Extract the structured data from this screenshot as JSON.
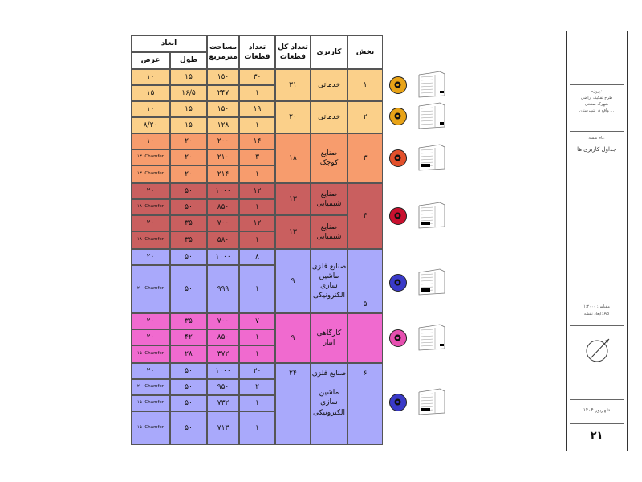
{
  "table": {
    "headers": {
      "section": "بخش",
      "usage": "کاربری",
      "total_parcels": "تعداد کل قطعات",
      "count": "تعداد قطعات",
      "area": "مساحت مترمربع",
      "dimensions": "ابعاد",
      "length": "طول",
      "width": "عرض"
    },
    "colors": {
      "section1": "#fbd08a",
      "section2": "#fbd08a",
      "section3": "#f79c6d",
      "section4": "#c95f5f",
      "section5": "#a9a9fb",
      "section5b": "#f06acf",
      "section6": "#a9a9fb"
    },
    "sections": {
      "s1": {
        "id": "١",
        "usage": "خدماتی",
        "total": "٣١",
        "rows": [
          {
            "count": "٣٠",
            "area": "١٥٠",
            "length": "١۵",
            "width": "١٠"
          },
          {
            "count": "١",
            "area": "٢۴٧",
            "length": "١۶/۵",
            "width": "١۵"
          }
        ]
      },
      "s2": {
        "id": "٢",
        "usage": "خدماتی",
        "total": "٢٠",
        "rows": [
          {
            "count": "١٩",
            "area": "١۵٠",
            "length": "١۵",
            "width": "١٠"
          },
          {
            "count": "١",
            "area": "١٢٨",
            "length": "١۵",
            "width": "٨/٢٠"
          }
        ]
      },
      "s3": {
        "id": "٣",
        "usage": "صنایع\nکوچک",
        "total": "١٨",
        "rows": [
          {
            "count": "١۴",
            "area": "٢٠٠",
            "length": "٢٠",
            "width": "١٠"
          },
          {
            "count": "٣",
            "area": "٢١٠",
            "length": "٢٠",
            "width": "١٣ :Chamfer"
          },
          {
            "count": "١",
            "area": "٢١۴",
            "length": "٢٠",
            "width": "١٣ :Chamfer"
          }
        ]
      },
      "s4": {
        "id": "۴",
        "usage_a": "صنایع\nشیمیایی",
        "total_a": "١٣",
        "usage_b": "صنایع\nشیمیایی",
        "total_b": "١٣",
        "rows": [
          {
            "count": "١٢",
            "area": "١٠٠٠",
            "length": "۵٠",
            "width": "٢٠"
          },
          {
            "count": "١",
            "area": "٨۵٠",
            "length": "۵٠",
            "width": "١٨ :Chamfer"
          },
          {
            "count": "١٢",
            "area": "٧٠٠",
            "length": "٣۵",
            "width": "٢٠"
          },
          {
            "count": "١",
            "area": "۵٨٠",
            "length": "٣۵",
            "width": "١٨ :Chamfer"
          }
        ]
      },
      "s5": {
        "id": "۵",
        "usage_a": "صنایع فلزی\nماشین\nسازی\nالکترونیکی",
        "total_a": "٩",
        "usage_b": "کارگاهی\nانبار",
        "total_b": "٩",
        "rows": [
          {
            "count": "٨",
            "area": "١٠٠٠",
            "length": "۵٠",
            "width": "٢٠"
          },
          {
            "count": "١",
            "area": "٩٩٩",
            "length": "۵٠",
            "width": "٢٠ :Chamfer"
          },
          {
            "count": "٧",
            "area": "٧٠٠",
            "length": "٣۵",
            "width": "٢٠"
          },
          {
            "count": "١",
            "area": "٨۵٠",
            "length": "۴٢",
            "width": "٢٠"
          },
          {
            "count": "١",
            "area": "٣٧٢",
            "length": "٢٨",
            "width": "١۵ :Chamfer"
          }
        ]
      },
      "s6": {
        "id": "۶",
        "usage": "صنایع فلزی\n\nماشین\nسازی\nالکترونیکی",
        "total": "٢۴",
        "rows": [
          {
            "count": "٢٠",
            "area": "١٠٠٠",
            "length": "۵٠",
            "width": "٢٠"
          },
          {
            "count": "٢",
            "area": "٩۵٠",
            "length": "۵٠",
            "width": "٢٠ :Chamfer"
          },
          {
            "count": "١",
            "area": "٧٣٢",
            "length": "۵٠",
            "width": "١۵ :Chamfer"
          },
          {
            "count": "١",
            "area": "٧١٣",
            "length": "۵٠",
            "width": "١۵ :Chamfer"
          }
        ]
      }
    }
  },
  "icons": [
    {
      "name": "gear-service-icon",
      "bg": "#e8a317"
    },
    {
      "name": "gear-service-icon",
      "bg": "#e8a317"
    },
    {
      "name": "gears-industry-icon",
      "bg": "#e2502b"
    },
    {
      "name": "chemical-icon",
      "bg": "#c8102e"
    },
    {
      "name": "metal-industry-icon",
      "bg": "#3a3ac8"
    },
    {
      "name": "workshop-icon",
      "bg": "#e64fb0"
    },
    {
      "name": "metal-industry-icon",
      "bg": "#3a3ac8"
    }
  ],
  "title_block": {
    "project_line1": "پروژه:",
    "project_line2": "طرح تفکیک اراضی",
    "project_line3": "شهرک صنعتی",
    "project_line4": "واقع در شهرستان ...",
    "sheet_label": "نام نقشه:",
    "sheet_title": "جداول کاربری ها",
    "scale_label": "مقیاس: ١:٢٠٠٠",
    "paper_label": "ابعاد نقشه: A3",
    "date": "شهریور ١۴٠۴",
    "page_number": "٢١"
  }
}
